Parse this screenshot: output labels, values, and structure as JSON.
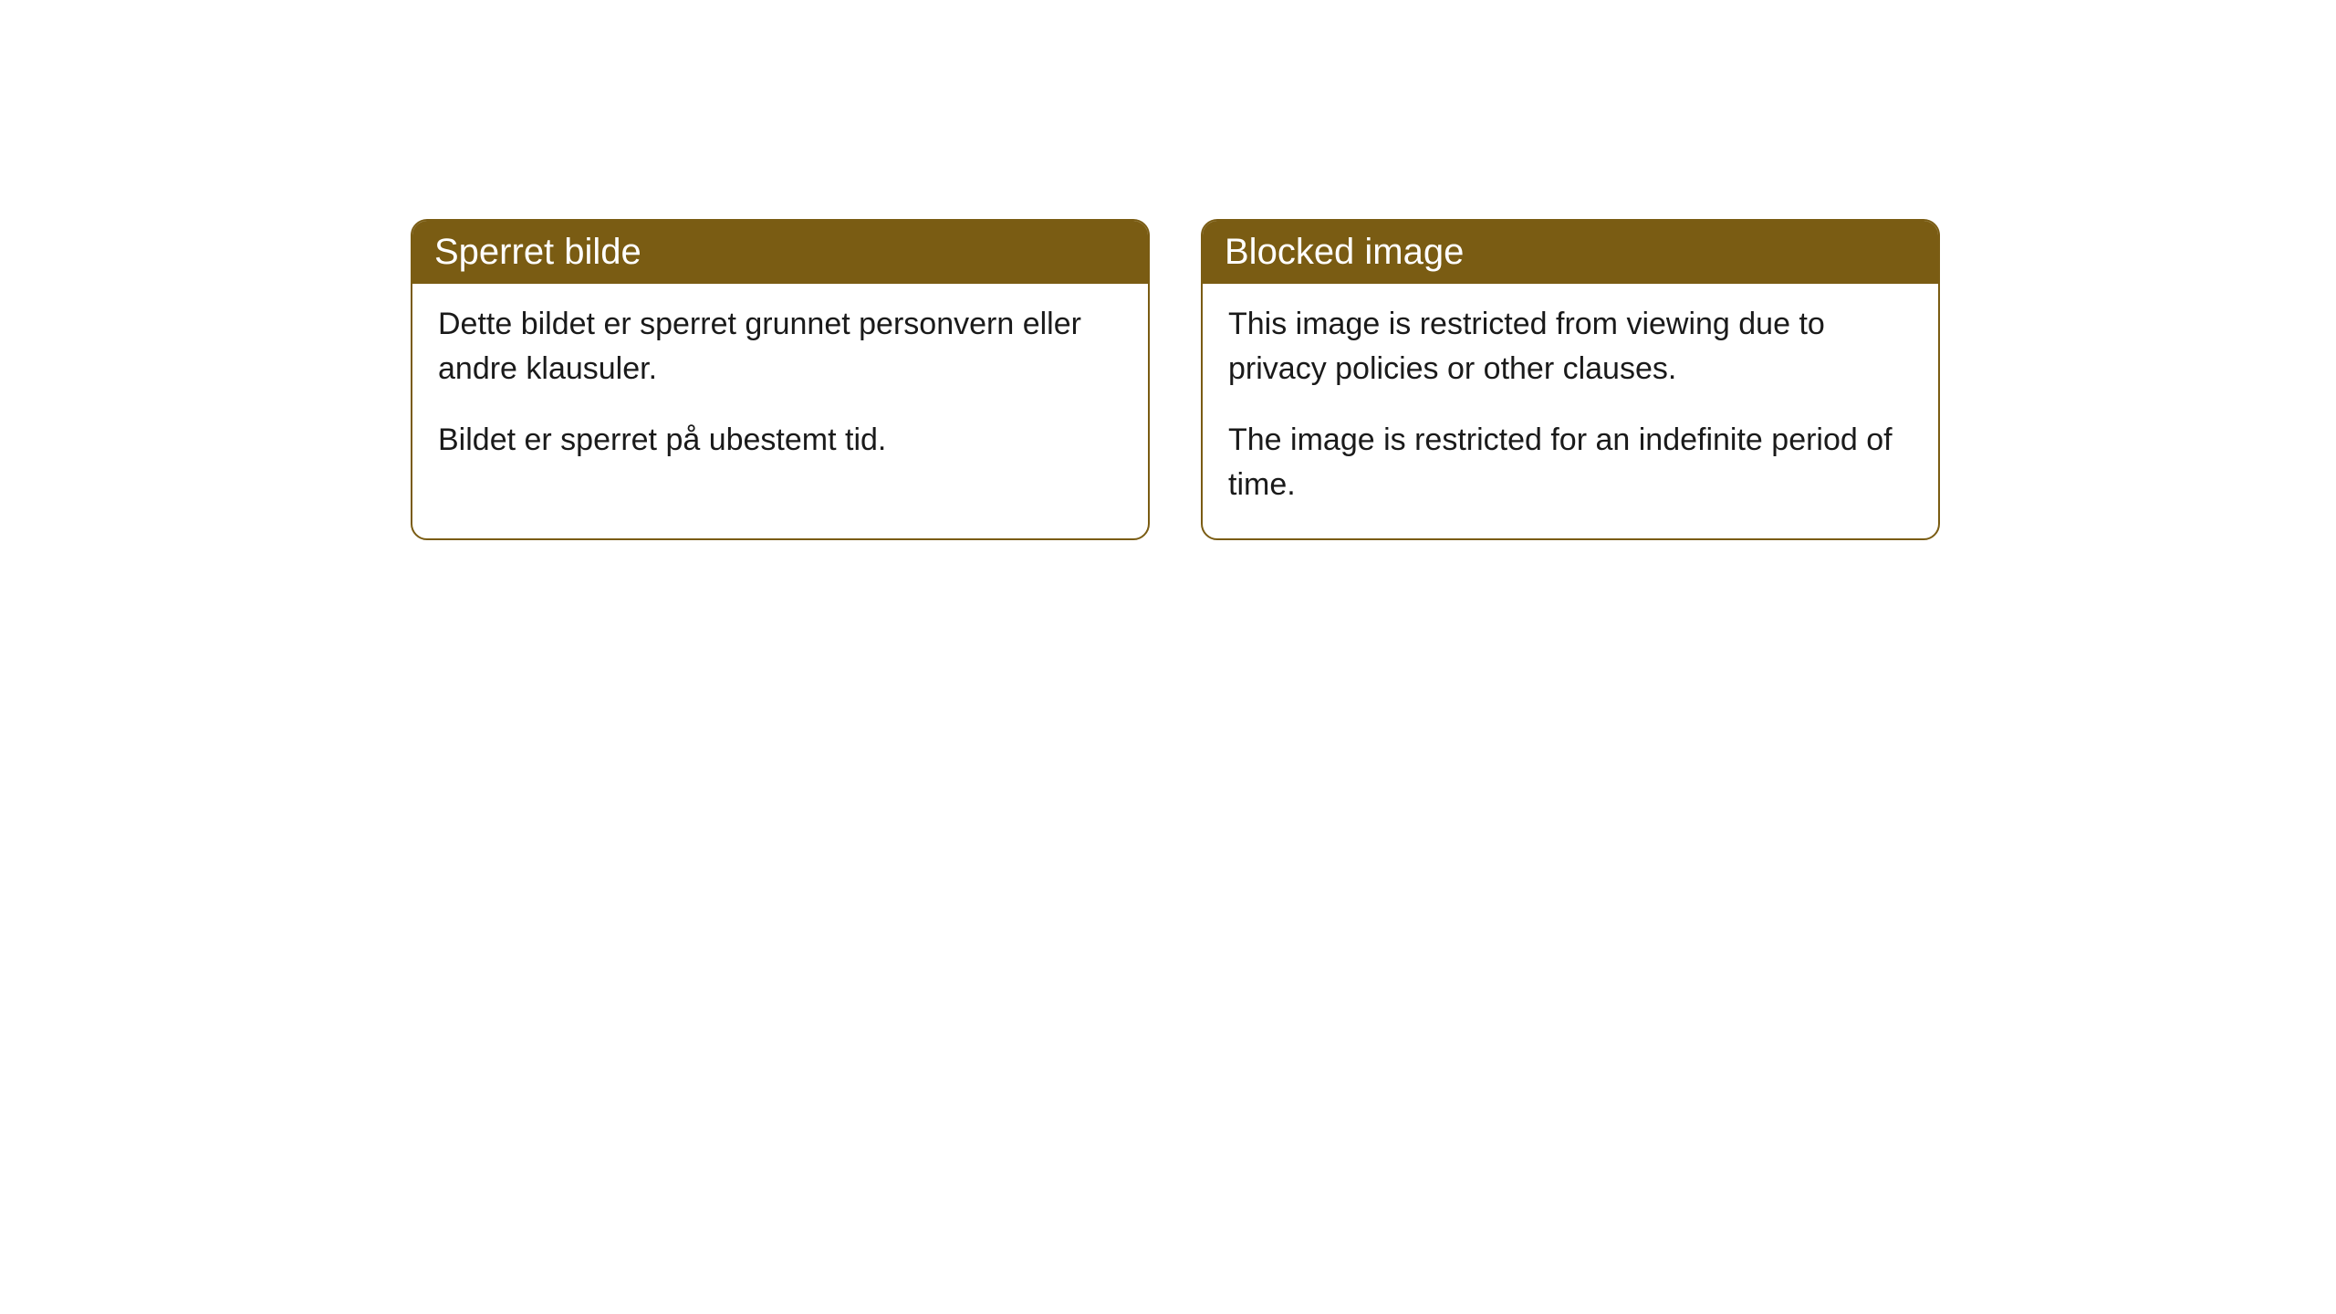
{
  "cards": [
    {
      "title": "Sperret bilde",
      "paragraphs": [
        "Dette bildet er sperret grunnet personvern eller andre klausuler.",
        "Bildet er sperret på ubestemt tid."
      ]
    },
    {
      "title": "Blocked image",
      "paragraphs": [
        "This image is restricted from viewing due to privacy policies or other clauses.",
        "The image is restricted for an indefinite period of time."
      ]
    }
  ],
  "styling": {
    "header_background_color": "#7a5c13",
    "header_text_color": "#ffffff",
    "card_border_color": "#7a5c13",
    "card_background_color": "#ffffff",
    "body_text_color": "#1a1a1a",
    "page_background_color": "#ffffff",
    "border_radius": 18,
    "header_fontsize": 40,
    "body_fontsize": 34
  }
}
